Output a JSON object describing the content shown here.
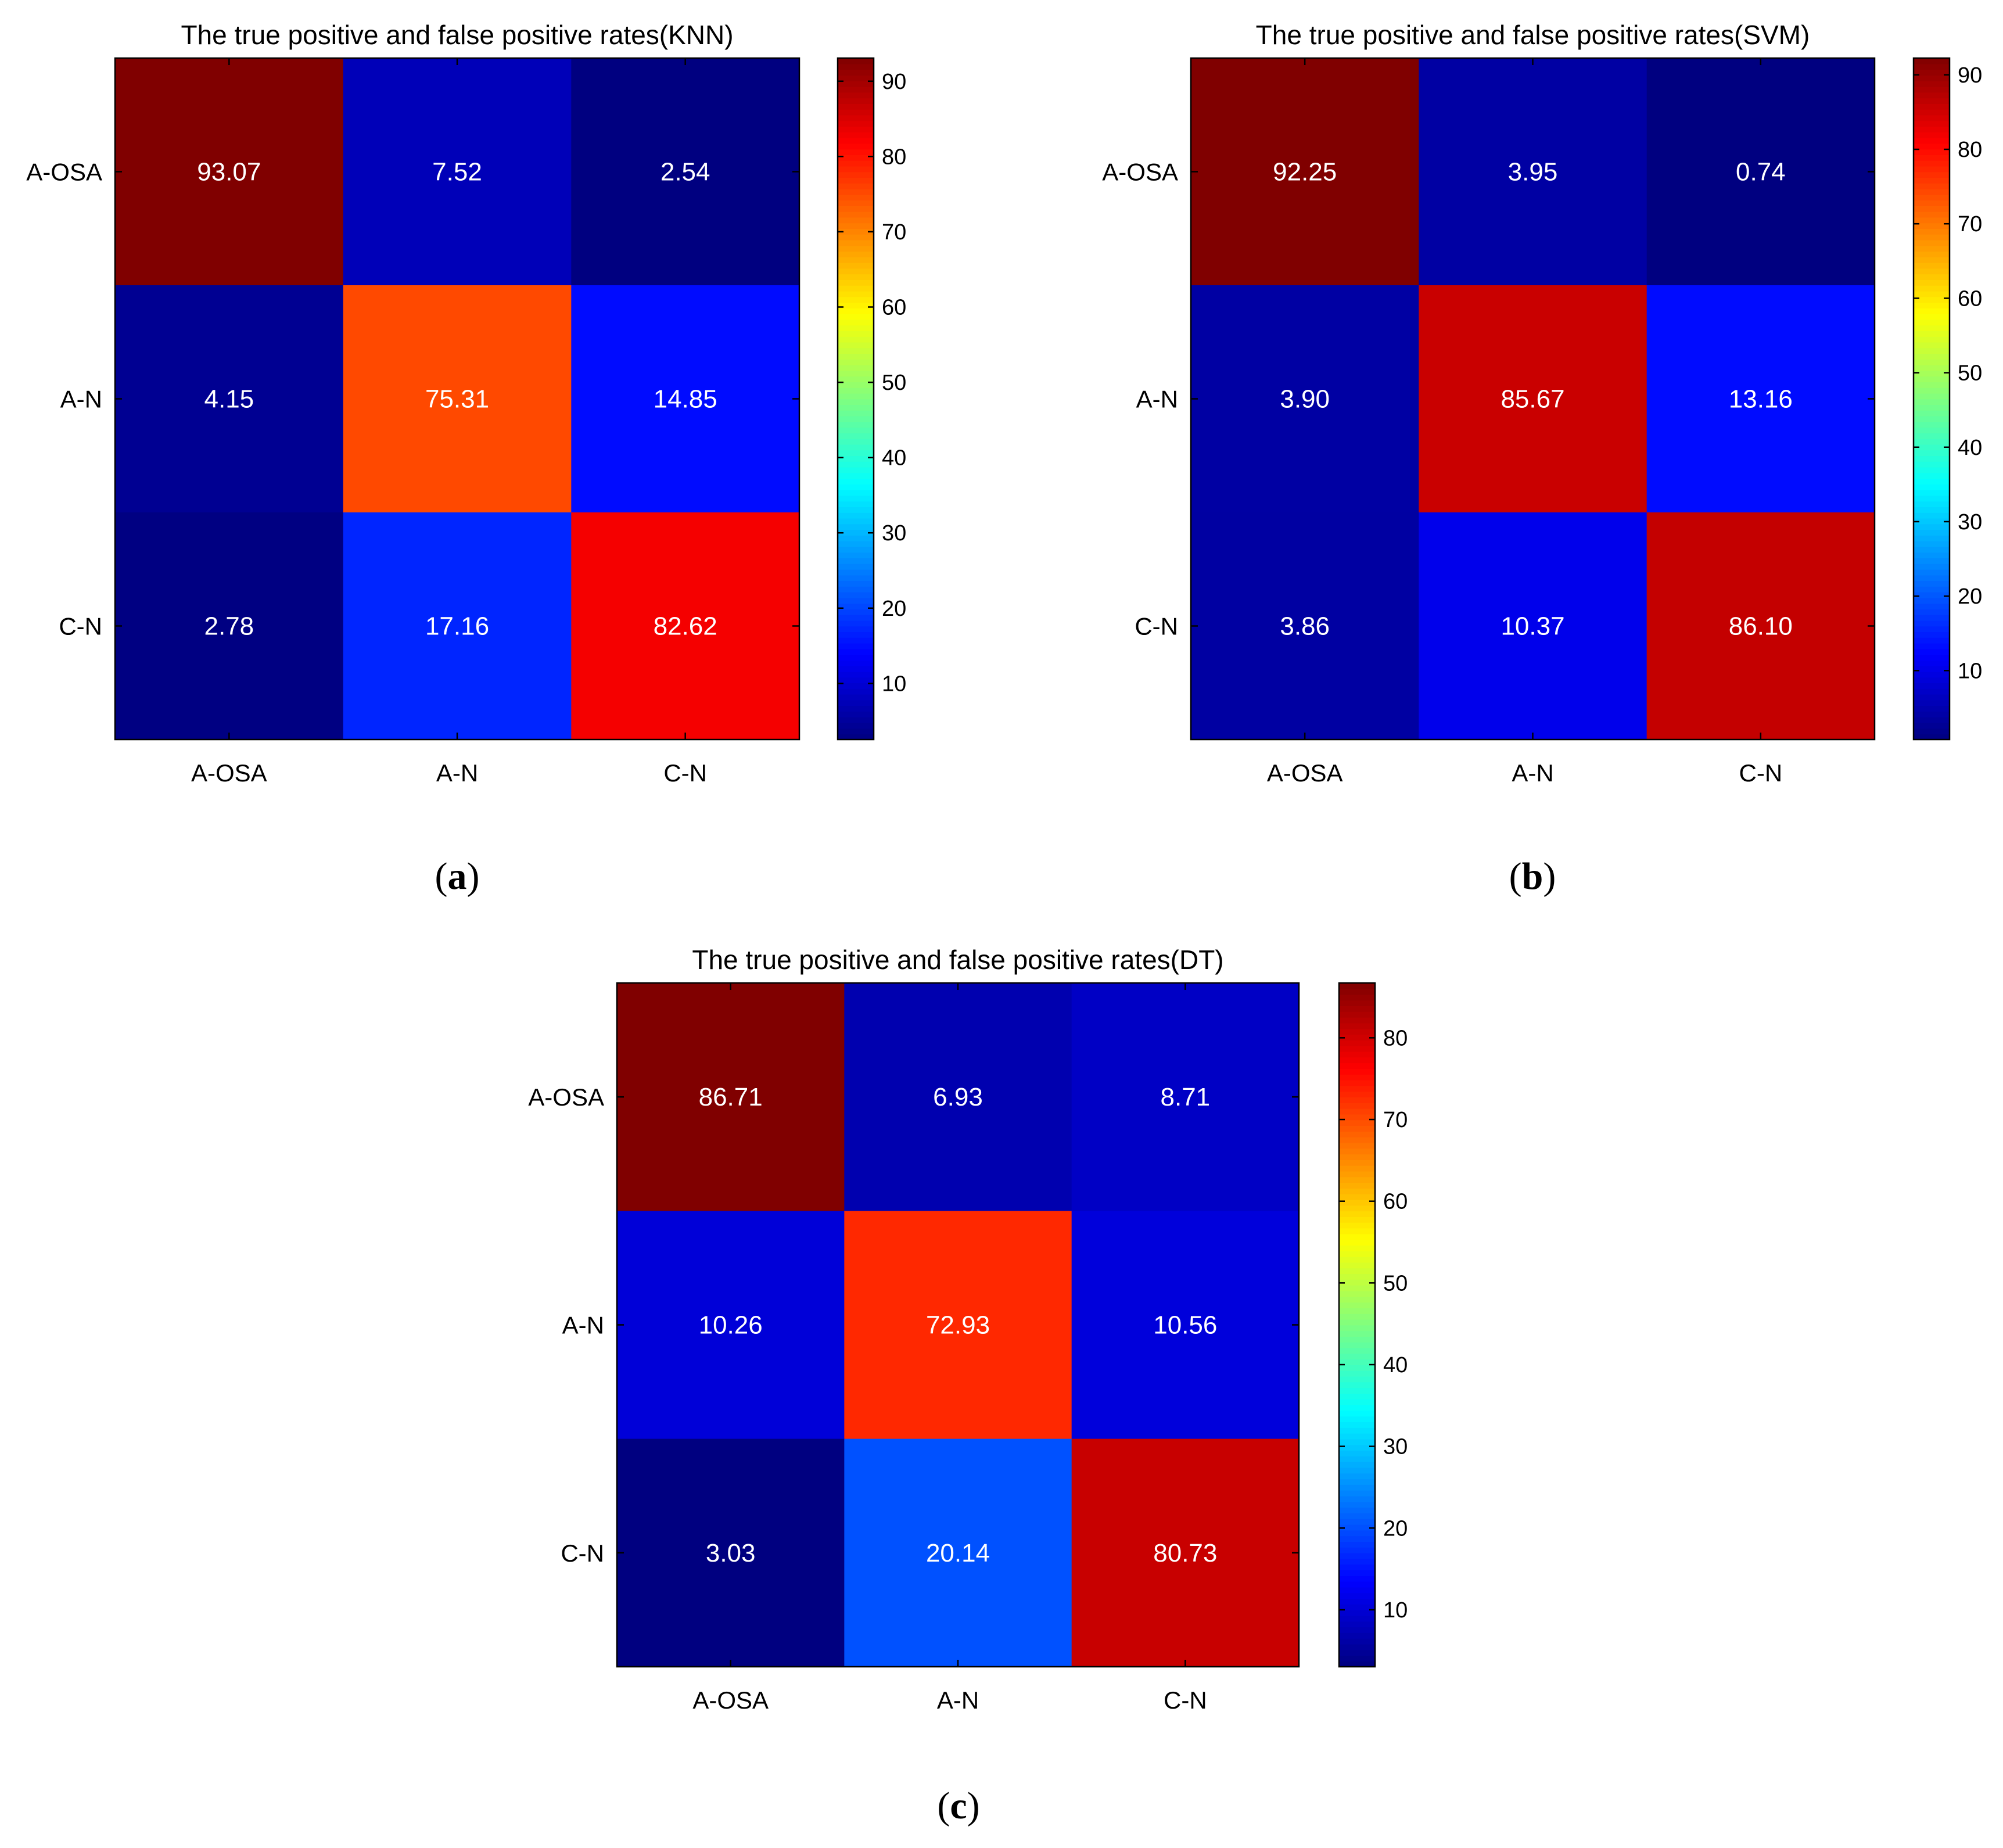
{
  "chart_data": [
    {
      "type": "heatmap",
      "panel_label": "a",
      "title": "The true positive and false positive rates(KNN)",
      "rows": [
        "A-OSA",
        "A-N",
        "C-N"
      ],
      "columns": [
        "A-OSA",
        "A-N",
        "C-N"
      ],
      "values": [
        [
          93.07,
          7.52,
          2.54
        ],
        [
          4.15,
          75.31,
          14.85
        ],
        [
          2.78,
          17.16,
          82.62
        ]
      ],
      "value_labels": [
        [
          "93.07",
          "7.52",
          "2.54"
        ],
        [
          "4.15",
          "75.31",
          "14.85"
        ],
        [
          "2.78",
          "17.16",
          "82.62"
        ]
      ],
      "colormap": "jet",
      "clim": [
        2.54,
        93.07
      ],
      "colorbar_ticks": [
        10,
        20,
        30,
        40,
        50,
        60,
        70,
        80,
        90
      ]
    },
    {
      "type": "heatmap",
      "panel_label": "b",
      "title": "The true positive and false positive rates(SVM)",
      "rows": [
        "A-OSA",
        "A-N",
        "C-N"
      ],
      "columns": [
        "A-OSA",
        "A-N",
        "C-N"
      ],
      "values": [
        [
          92.25,
          3.95,
          0.74
        ],
        [
          3.9,
          85.67,
          13.16
        ],
        [
          3.86,
          10.37,
          86.1
        ]
      ],
      "value_labels": [
        [
          "92.25",
          "3.95",
          "0.74"
        ],
        [
          "3.90",
          "85.67",
          "13.16"
        ],
        [
          "3.86",
          "10.37",
          "86.10"
        ]
      ],
      "colormap": "jet",
      "clim": [
        0.74,
        92.25
      ],
      "colorbar_ticks": [
        10,
        20,
        30,
        40,
        50,
        60,
        70,
        80,
        90
      ]
    },
    {
      "type": "heatmap",
      "panel_label": "c",
      "title": "The true positive and false positive rates(DT)",
      "rows": [
        "A-OSA",
        "A-N",
        "C-N"
      ],
      "columns": [
        "A-OSA",
        "A-N",
        "C-N"
      ],
      "values": [
        [
          86.71,
          6.93,
          8.71
        ],
        [
          10.26,
          72.93,
          10.56
        ],
        [
          3.03,
          20.14,
          80.73
        ]
      ],
      "value_labels": [
        [
          "86.71",
          "6.93",
          "8.71"
        ],
        [
          "10.26",
          "72.93",
          "10.56"
        ],
        [
          "3.03",
          "20.14",
          "80.73"
        ]
      ],
      "colormap": "jet",
      "clim": [
        3.03,
        86.71
      ],
      "colorbar_ticks": [
        10,
        20,
        30,
        40,
        50,
        60,
        70,
        80
      ]
    }
  ]
}
